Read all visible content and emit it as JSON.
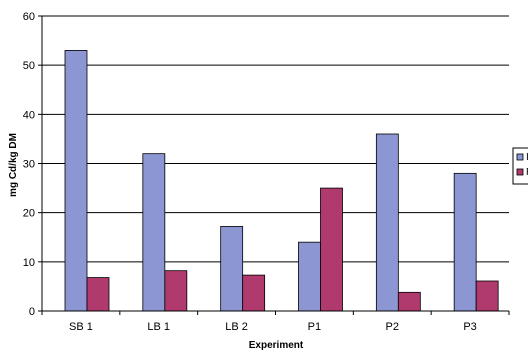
{
  "chart_data": {
    "type": "bar",
    "title": "",
    "xlabel": "Experiment",
    "ylabel": "mg Cd/kg DM",
    "categories": [
      "SB 1",
      "LB 1",
      "LB 2",
      "P1",
      "P2",
      "P3"
    ],
    "series": [
      {
        "name": "Initial",
        "color": "#8b96d2",
        "values": [
          53,
          32,
          17.2,
          14,
          36,
          28
        ]
      },
      {
        "name": "Final",
        "color": "#b03a6e",
        "values": [
          6.8,
          8.2,
          7.3,
          25,
          3.8,
          6.1
        ]
      }
    ],
    "ylim": [
      0,
      60
    ],
    "yticks": [
      0,
      10,
      20,
      30,
      40,
      50,
      60
    ],
    "grid": true,
    "legend_position": "right",
    "gridline_color": "#000000"
  }
}
